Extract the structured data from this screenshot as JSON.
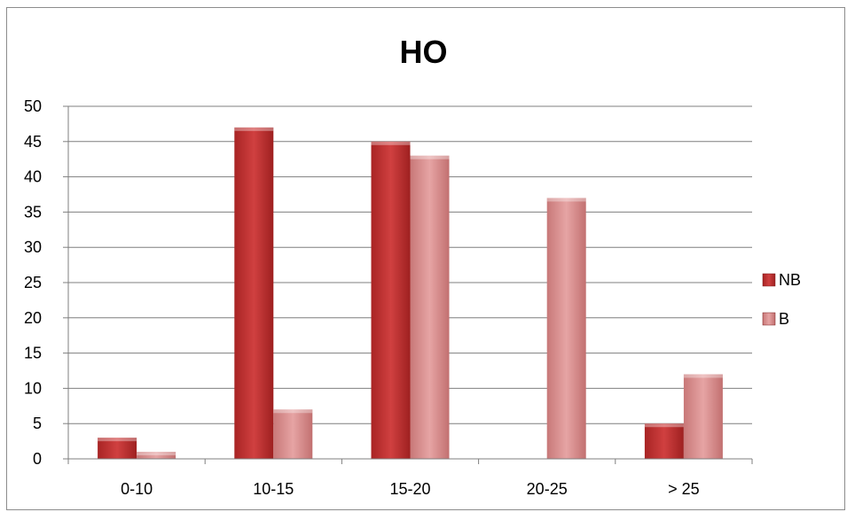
{
  "chart_data": {
    "type": "bar",
    "title": "HO",
    "xlabel": "",
    "ylabel": "",
    "categories": [
      "0-10",
      "10-15",
      "15-20",
      "20-25",
      "> 25"
    ],
    "series": [
      {
        "name": "NB",
        "values": [
          3,
          47,
          45,
          0,
          5
        ]
      },
      {
        "name": "B",
        "values": [
          1,
          7,
          43,
          37,
          12
        ]
      }
    ],
    "ylim": [
      0,
      50
    ],
    "yticks": [
      0,
      5,
      10,
      15,
      20,
      25,
      30,
      35,
      40,
      45,
      50
    ],
    "grid": true,
    "legend_position": "right",
    "colors": {
      "NB": "#c0302e",
      "B": "#d98c8c"
    }
  }
}
